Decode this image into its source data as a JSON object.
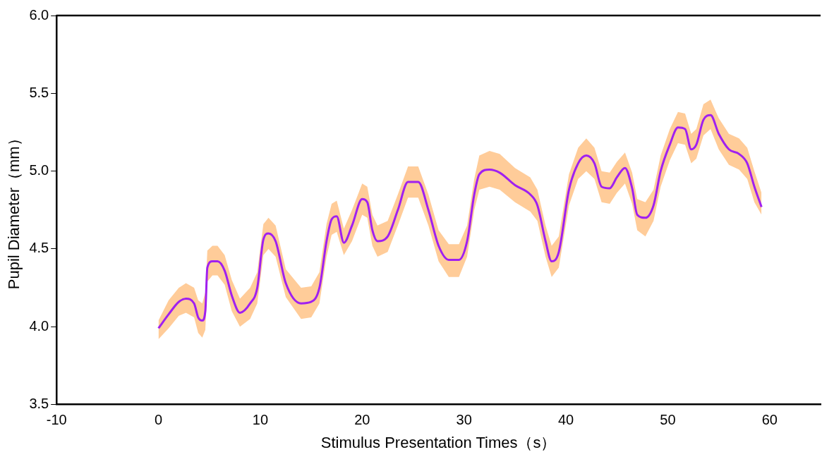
{
  "chart_data": {
    "type": "line",
    "xlabel": "Stimulus Presentation Times（s）",
    "ylabel": "Pupil Diameter（mm）",
    "xlim": [
      -10,
      65
    ],
    "xticks": [
      -10,
      0,
      10,
      20,
      30,
      40,
      50,
      60
    ],
    "ylim": [
      3.5,
      6.0
    ],
    "yticks": [
      {
        "value": 3.5,
        "label": "3.5"
      },
      {
        "value": 4,
        "label": "4.0"
      },
      {
        "value": 4.5,
        "label": "4.5"
      },
      {
        "value": 5,
        "label": "5.0"
      },
      {
        "value": 5.5,
        "label": "5.5"
      },
      {
        "value": 6,
        "label": "6.0"
      }
    ],
    "grid": false,
    "legend": false,
    "marker": "none",
    "line_style": "solid",
    "series": [
      {
        "color": "#a020f0",
        "x": [
          0,
          1,
          2,
          2.7,
          3.5,
          3.9,
          4.3,
          4.6,
          4.8,
          5.3,
          5.8,
          6.5,
          7.2,
          8,
          9,
          9.7,
          10.3,
          10.8,
          11.5,
          12.5,
          14,
          15,
          15.8,
          16.5,
          17,
          17.5,
          18.2,
          19,
          20,
          20.5,
          21,
          21.5,
          22.5,
          23.5,
          24.5,
          25.5,
          26.5,
          27.5,
          28.5,
          29.5,
          30.3,
          31,
          31.5,
          32.5,
          33.5,
          35,
          36.5,
          37.2,
          38,
          38.6,
          39.3,
          40.3,
          41.2,
          42,
          42.8,
          43.5,
          44.3,
          45,
          45.8,
          46.5,
          47,
          47.8,
          48.6,
          49.3,
          50.2,
          51,
          51.7,
          52.3,
          52.8,
          53.5,
          54.2,
          55,
          56,
          57,
          57.8,
          58.5,
          59.2
        ],
        "values": [
          3.99,
          4.08,
          4.16,
          4.18,
          4.15,
          4.06,
          4.04,
          4.1,
          4.38,
          4.42,
          4.42,
          4.36,
          4.2,
          4.09,
          4.15,
          4.25,
          4.56,
          4.6,
          4.55,
          4.28,
          4.15,
          4.16,
          4.25,
          4.55,
          4.69,
          4.71,
          4.54,
          4.65,
          4.82,
          4.8,
          4.62,
          4.55,
          4.58,
          4.75,
          4.93,
          4.93,
          4.75,
          4.52,
          4.43,
          4.43,
          4.55,
          4.85,
          4.98,
          5.01,
          4.99,
          4.91,
          4.85,
          4.78,
          4.55,
          4.42,
          4.48,
          4.88,
          5.05,
          5.1,
          5.05,
          4.9,
          4.89,
          4.96,
          5.02,
          4.89,
          4.72,
          4.7,
          4.78,
          5.0,
          5.17,
          5.28,
          5.27,
          5.14,
          5.17,
          5.33,
          5.36,
          5.24,
          5.14,
          5.11,
          5.05,
          4.9,
          4.77
        ],
        "lower": [
          3.92,
          3.99,
          4.07,
          4.09,
          4.06,
          3.96,
          3.93,
          3.98,
          4.29,
          4.33,
          4.33,
          4.27,
          4.1,
          4.0,
          4.05,
          4.15,
          4.46,
          4.5,
          4.45,
          4.19,
          4.05,
          4.06,
          4.15,
          4.45,
          4.59,
          4.61,
          4.46,
          4.55,
          4.72,
          4.7,
          4.52,
          4.45,
          4.48,
          4.65,
          4.83,
          4.83,
          4.65,
          4.42,
          4.32,
          4.32,
          4.45,
          4.75,
          4.88,
          4.9,
          4.88,
          4.8,
          4.74,
          4.68,
          4.45,
          4.32,
          4.38,
          4.78,
          4.95,
          5.0,
          4.95,
          4.8,
          4.79,
          4.86,
          4.92,
          4.79,
          4.62,
          4.58,
          4.68,
          4.9,
          5.07,
          5.18,
          5.17,
          5.05,
          5.08,
          5.23,
          5.27,
          5.14,
          5.04,
          5.01,
          4.95,
          4.8,
          4.72
        ],
        "upper": [
          4.04,
          4.17,
          4.25,
          4.28,
          4.25,
          4.17,
          4.15,
          4.22,
          4.49,
          4.52,
          4.52,
          4.46,
          4.3,
          4.18,
          4.25,
          4.35,
          4.66,
          4.7,
          4.65,
          4.37,
          4.25,
          4.26,
          4.35,
          4.66,
          4.79,
          4.81,
          4.63,
          4.75,
          4.92,
          4.9,
          4.72,
          4.65,
          4.68,
          4.85,
          5.03,
          5.03,
          4.85,
          4.62,
          4.53,
          4.53,
          4.65,
          4.95,
          5.1,
          5.13,
          5.11,
          5.02,
          4.96,
          4.88,
          4.65,
          4.52,
          4.58,
          4.98,
          5.15,
          5.21,
          5.15,
          5.0,
          4.99,
          5.06,
          5.12,
          4.99,
          4.82,
          4.8,
          4.88,
          5.1,
          5.27,
          5.38,
          5.37,
          5.24,
          5.27,
          5.43,
          5.46,
          5.34,
          5.24,
          5.21,
          5.15,
          5.0,
          4.86
        ]
      }
    ]
  }
}
